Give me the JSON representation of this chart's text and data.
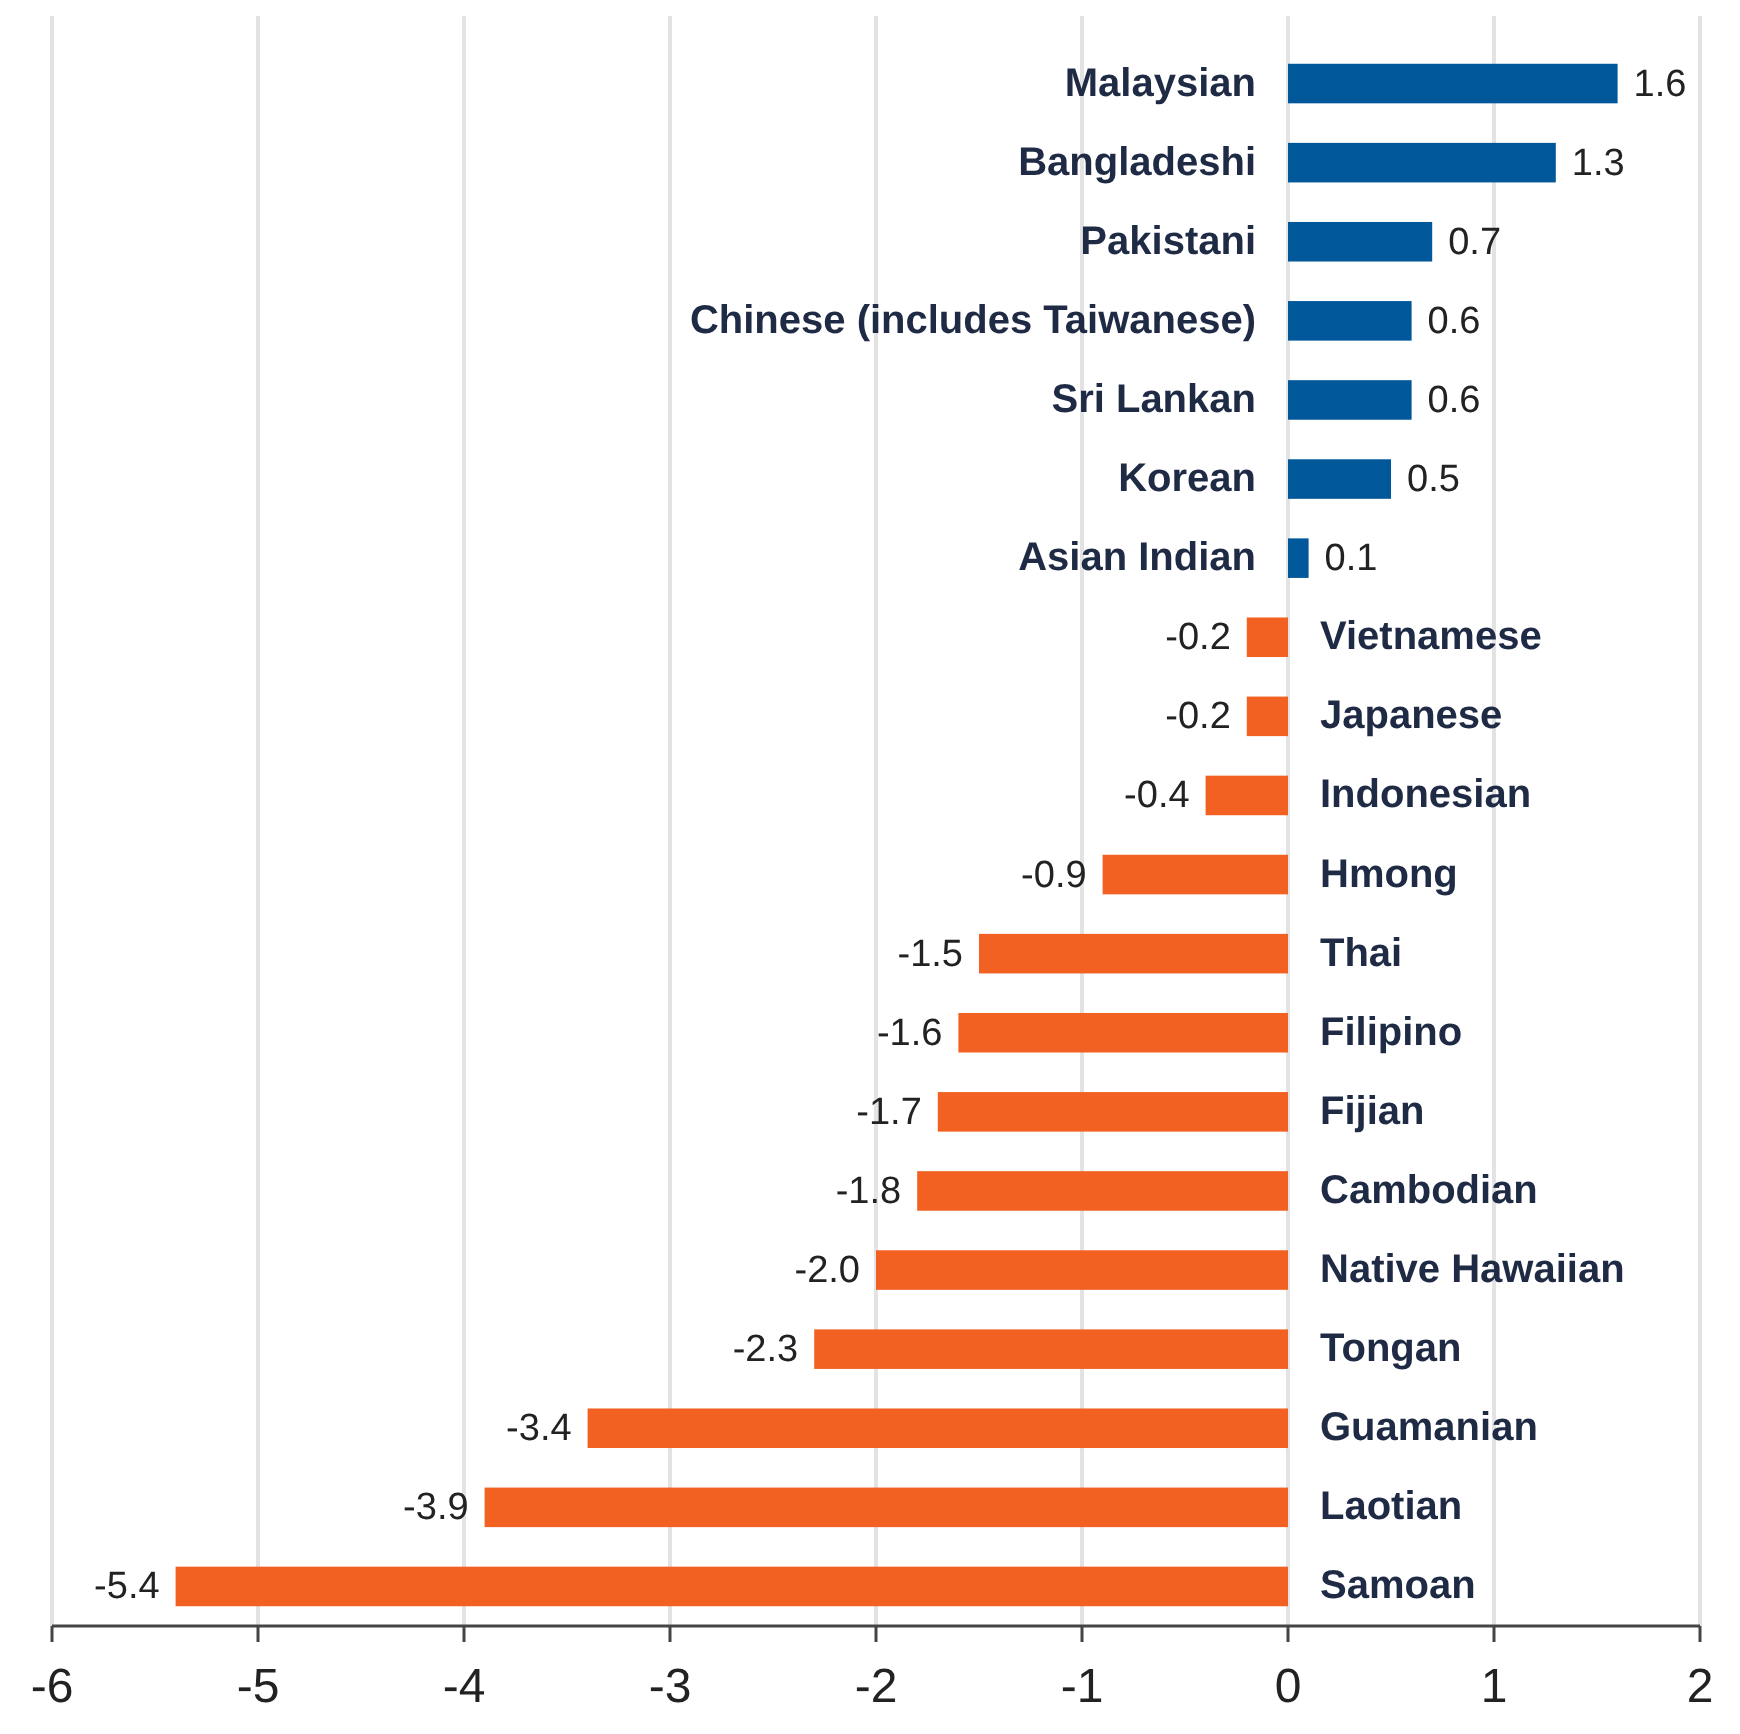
{
  "chart_data": {
    "type": "bar",
    "orientation": "horizontal",
    "categories": [
      "Malaysian",
      "Bangladeshi",
      "Pakistani",
      "Chinese (includes Taiwanese)",
      "Sri Lankan",
      "Korean",
      "Asian Indian",
      "Vietnamese",
      "Japanese",
      "Indonesian",
      "Hmong",
      "Thai",
      "Filipino",
      "Fijian",
      "Cambodian",
      "Native Hawaiian",
      "Tongan",
      "Guamanian",
      "Laotian",
      "Samoan"
    ],
    "values": [
      1.6,
      1.3,
      0.7,
      0.6,
      0.6,
      0.5,
      0.1,
      -0.2,
      -0.2,
      -0.4,
      -0.9,
      -1.5,
      -1.6,
      -1.7,
      -1.8,
      -2.0,
      -2.3,
      -3.4,
      -3.9,
      -5.4
    ],
    "value_labels": [
      "1.6",
      "1.3",
      "0.7",
      "0.6",
      "0.6",
      "0.5",
      "0.1",
      "-0.2",
      "-0.2",
      "-0.4",
      "-0.9",
      "-1.5",
      "-1.6",
      "-1.7",
      "-1.8",
      "-2.0",
      "-2.3",
      "-3.4",
      "-3.9",
      "-5.4"
    ],
    "colors": [
      "#00589a",
      "#00589a",
      "#00589a",
      "#00589a",
      "#00589a",
      "#00589a",
      "#00589a",
      "#f26122",
      "#f26122",
      "#f26122",
      "#f26122",
      "#f26122",
      "#f26122",
      "#f26122",
      "#f26122",
      "#f26122",
      "#f26122",
      "#f26122",
      "#f26122",
      "#f26122"
    ],
    "xlim": [
      -6,
      2
    ],
    "xticks": [
      -6,
      -5,
      -4,
      -3,
      -2,
      -1,
      0,
      1,
      2
    ],
    "grid": "x"
  }
}
